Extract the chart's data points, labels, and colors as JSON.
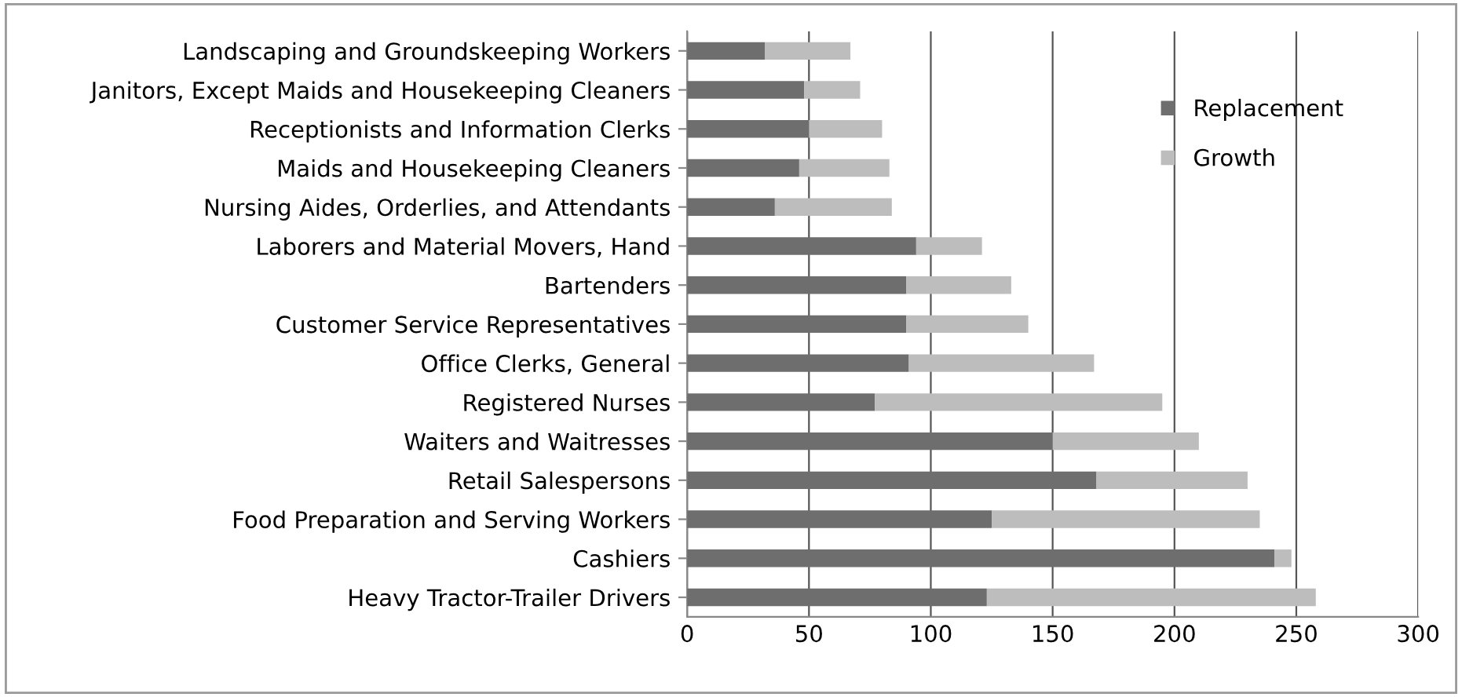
{
  "chart_data": {
    "type": "bar",
    "orientation": "horizontal",
    "stacked": true,
    "categories": [
      "Landscaping and Groundskeeping Workers",
      "Janitors, Except Maids and Housekeeping Cleaners",
      "Receptionists and Information Clerks",
      "Maids and Housekeeping Cleaners",
      "Nursing Aides, Orderlies, and Attendants",
      "Laborers and Material Movers, Hand",
      "Bartenders",
      "Customer Service Representatives",
      "Office Clerks, General",
      "Registered Nurses",
      "Waiters and Waitresses",
      "Retail Salespersons",
      "Food Preparation and Serving Workers",
      "Cashiers",
      "Heavy Tractor-Trailer Drivers"
    ],
    "series": [
      {
        "name": "Replacement",
        "color": "#6e6e6e",
        "values": [
          32,
          48,
          50,
          46,
          36,
          94,
          90,
          90,
          91,
          77,
          150,
          168,
          125,
          241,
          123
        ]
      },
      {
        "name": "Growth",
        "color": "#bdbdbd",
        "values": [
          35,
          23,
          30,
          37,
          48,
          27,
          43,
          50,
          76,
          118,
          60,
          62,
          110,
          7,
          135
        ]
      }
    ],
    "xlim": [
      0,
      300
    ],
    "xticks": [
      0,
      50,
      100,
      150,
      200,
      250,
      300
    ],
    "grid": "x",
    "legend": "top right"
  }
}
